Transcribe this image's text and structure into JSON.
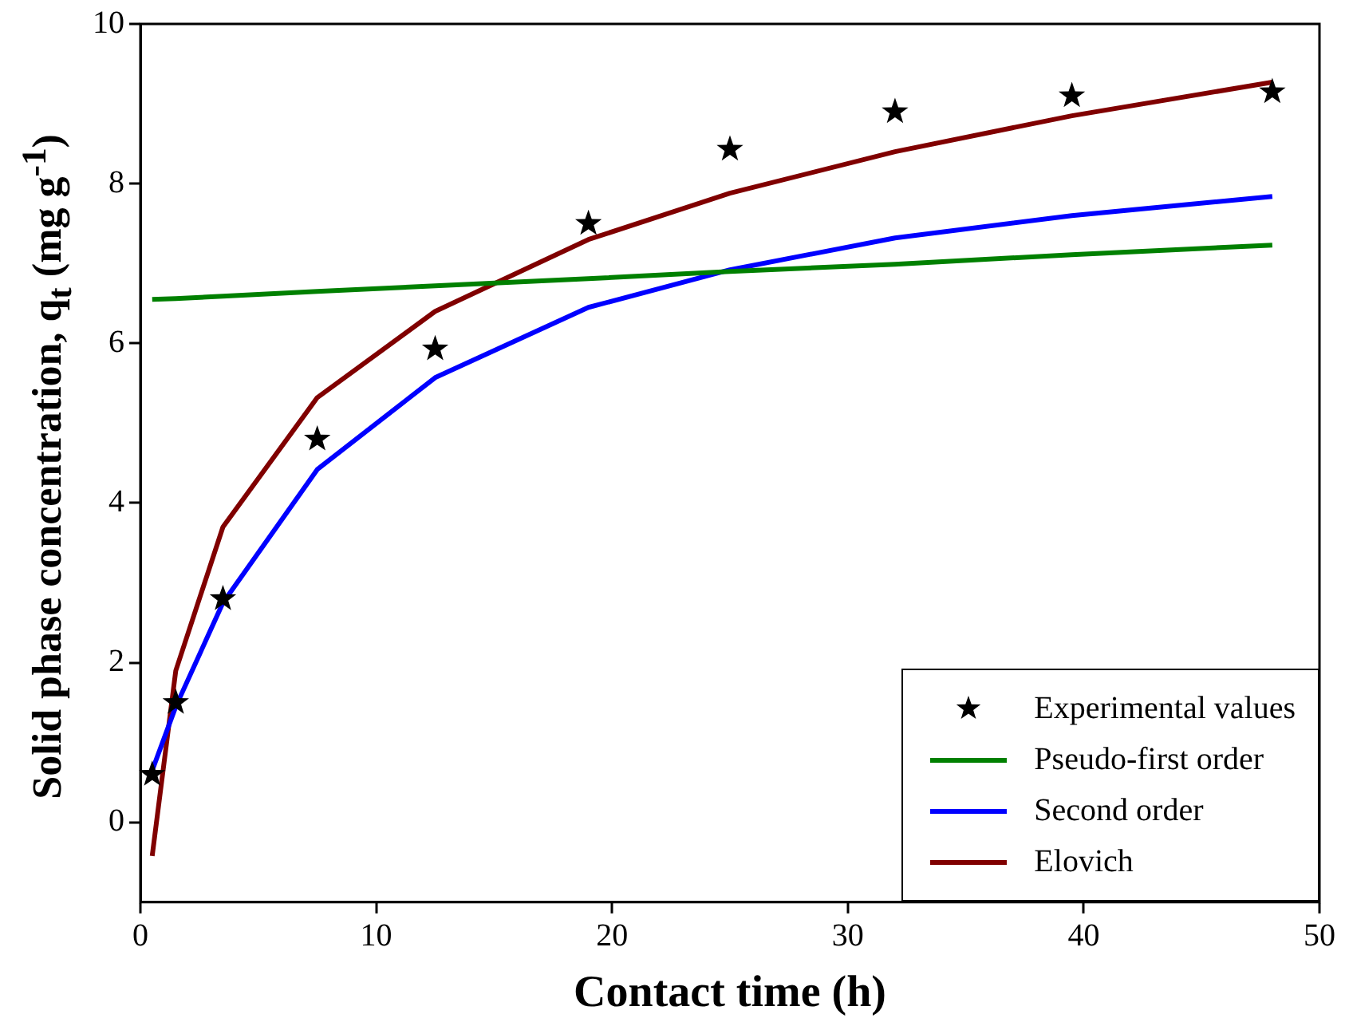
{
  "chart_data": {
    "type": "line",
    "xlabel": "Contact time (h)",
    "ylabel": "Solid phase concentration, q$_{t}$ (mg g$^{-1}$)",
    "x": [
      0.5,
      1.5,
      3.5,
      7.5,
      12.5,
      19,
      25,
      32,
      39.5,
      48
    ],
    "series": [
      {
        "name": "Experimental values",
        "type": "scatter",
        "marker": "star",
        "color": "#000000",
        "values": [
          0.6,
          1.5,
          2.8,
          4.8,
          5.93,
          7.5,
          8.43,
          8.9,
          9.1,
          9.15
        ]
      },
      {
        "name": "Pseudo-first order",
        "color": "#008000",
        "values": [
          6.55,
          6.56,
          6.59,
          6.65,
          6.72,
          6.81,
          6.9,
          6.99,
          7.11,
          7.23
        ]
      },
      {
        "name": "Second order",
        "color": "#0000ff",
        "values": [
          0.65,
          1.45,
          2.75,
          4.42,
          5.57,
          6.45,
          6.92,
          7.32,
          7.6,
          7.84
        ]
      },
      {
        "name": "Elovich",
        "color": "#800000",
        "values": [
          -0.42,
          1.9,
          3.7,
          5.32,
          6.4,
          7.3,
          7.88,
          8.4,
          8.85,
          9.27
        ]
      }
    ],
    "xlim": [
      0,
      50
    ],
    "xticks": [
      0,
      10,
      20,
      30,
      40,
      50
    ],
    "ylim": [
      -1,
      10
    ],
    "yticks": [
      0,
      2,
      4,
      6,
      8,
      10
    ],
    "grid": false,
    "legend": "bottom right"
  }
}
